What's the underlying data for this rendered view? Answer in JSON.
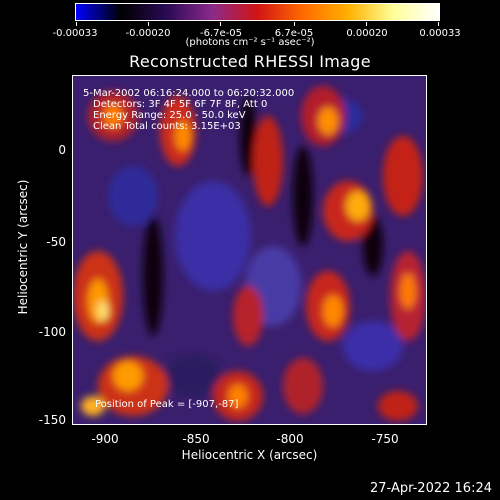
{
  "colorbar": {
    "tick_labels": [
      "-0.00033",
      "-0.00020",
      "-6.7e-05",
      "6.7e-05",
      "0.00020",
      "0.00033"
    ],
    "units": "(photons cm⁻² s⁻¹ asec⁻²)",
    "colors": [
      "#0000ff",
      "#000000",
      "#2a0a55",
      "#8a2a8a",
      "#d11414",
      "#ff6a00",
      "#ffb000",
      "#ffff99",
      "#ffffff"
    ]
  },
  "image": {
    "title": "Reconstructed RHESSI Image",
    "info_lines": [
      "5-Mar-2002 06:16:24.000 to 06:20:32.000",
      "Detectors: 3F 4F 5F 6F 7F 8F, Att 0",
      "Energy Range: 25.0 - 50.0 keV",
      "Clean    Total counts: 3.15E+03"
    ],
    "peak_label": "Position of Peak = [-907,-87]",
    "x_axis_title": "Heliocentric X (arcsec)",
    "y_axis_title": "Heliocentric Y (arcsec)",
    "x_ticks": [
      "-900",
      "-850",
      "-800",
      "-750"
    ],
    "y_ticks": [
      "0",
      "-50",
      "-100",
      "-150"
    ]
  },
  "footer": {
    "timestamp": "27-Apr-2022 16:24"
  }
}
